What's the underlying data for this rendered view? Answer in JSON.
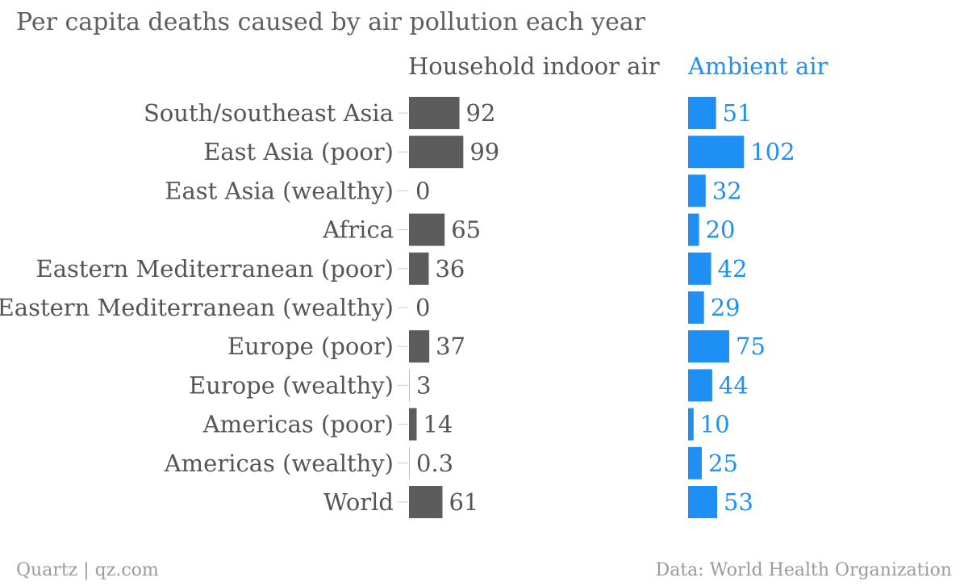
{
  "chart_data": {
    "type": "bar",
    "title": "Per capita deaths caused by air pollution each year",
    "categories": [
      "South/southeast Asia",
      "East Asia (poor)",
      "East Asia (wealthy)",
      "Africa",
      "Eastern Mediterranean (poor)",
      "Eastern Mediterranean (wealthy)",
      "Europe (poor)",
      "Europe (wealthy)",
      "Americas (poor)",
      "Americas (wealthy)",
      "World"
    ],
    "series": [
      {
        "name": "Household indoor air",
        "color": "#5c5c5c",
        "values": [
          92,
          99,
          0,
          65,
          36,
          0,
          37,
          3,
          14,
          0.3,
          61
        ],
        "value_labels": [
          "92",
          "99",
          "0",
          "65",
          "36",
          "0",
          "37",
          "3",
          "14",
          "0.3",
          "61"
        ]
      },
      {
        "name": "Ambient air",
        "color": "#1e8ff5",
        "values": [
          51,
          102,
          32,
          20,
          42,
          29,
          75,
          44,
          10,
          25,
          53
        ],
        "value_labels": [
          "51",
          "102",
          "32",
          "20",
          "42",
          "29",
          "75",
          "44",
          "10",
          "25",
          "53"
        ]
      }
    ],
    "orientation": "horizontal",
    "layout": "small-multiples",
    "xlim": [
      0,
      102
    ]
  },
  "footer": {
    "source_left": "Quartz | qz.com",
    "source_right": "Data: World Health Organization"
  }
}
